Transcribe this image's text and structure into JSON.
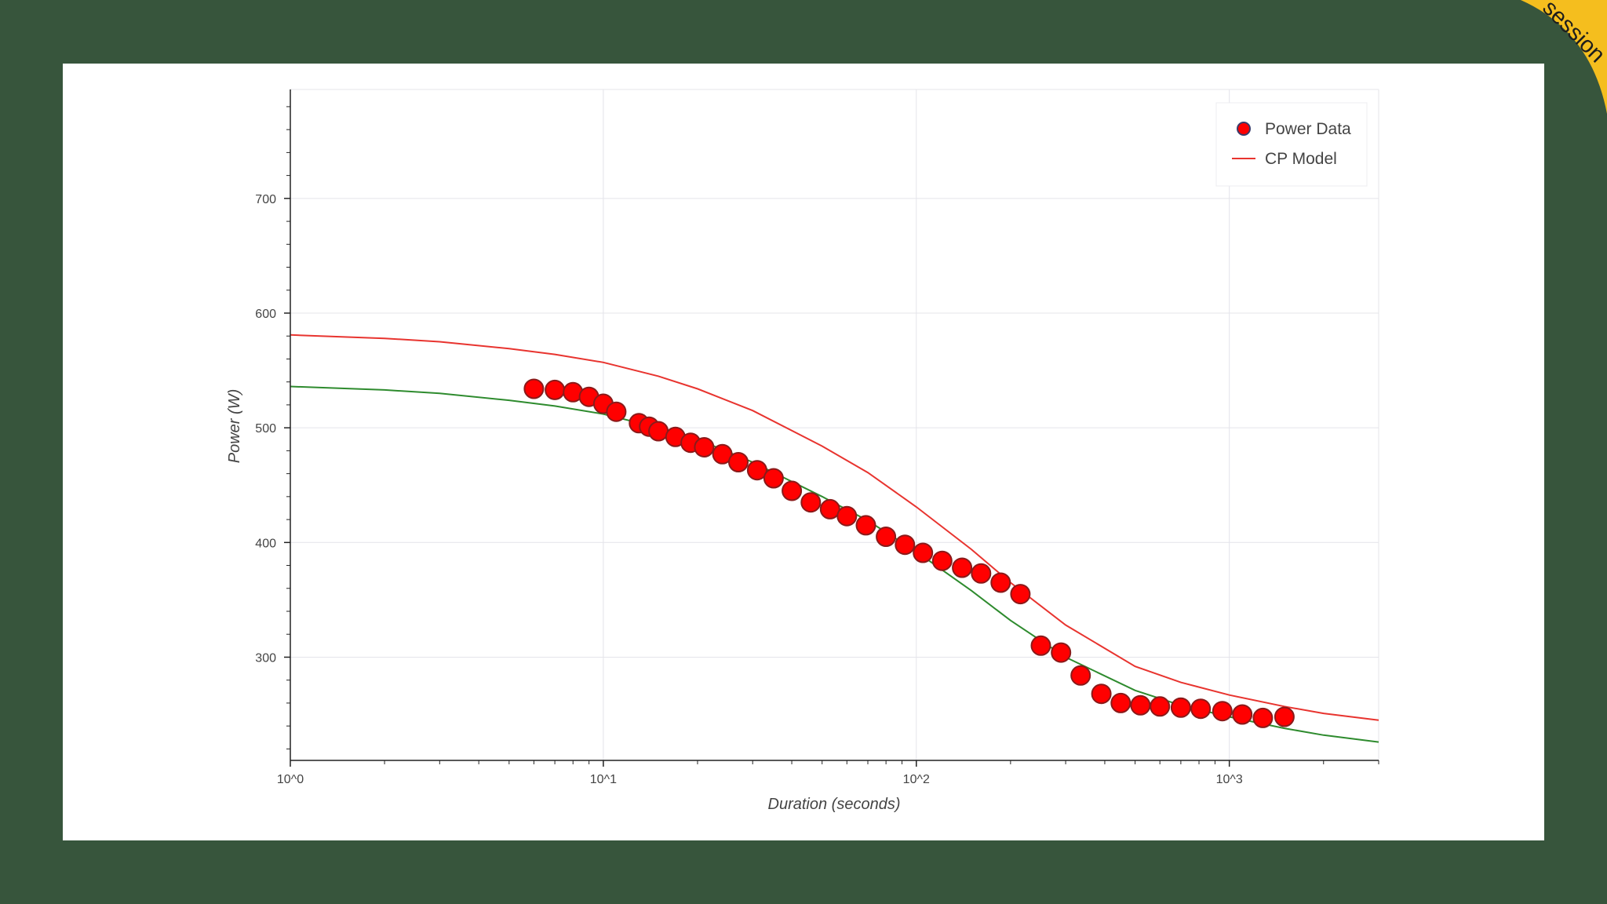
{
  "page": {
    "background_color": "#37553c",
    "card_color": "#ffffff",
    "badge_text": "session",
    "badge_color": "#f5be1e"
  },
  "chart_data": {
    "type": "scatter",
    "x_scale": "log",
    "xlim": [
      1,
      3000
    ],
    "ylim": [
      210,
      795
    ],
    "xlabel": "Duration (seconds)",
    "ylabel": "Power (W)",
    "x_ticks": [
      {
        "value": 1,
        "label": "10^0"
      },
      {
        "value": 10,
        "label": "10^1"
      },
      {
        "value": 100,
        "label": "10^2"
      },
      {
        "value": 1000,
        "label": "10^3"
      }
    ],
    "y_ticks": [
      300,
      400,
      500,
      600,
      700
    ],
    "grid": true,
    "legend": {
      "position": "top-right",
      "entries": [
        {
          "label": "Power Data",
          "kind": "marker",
          "color": "#ff0000"
        },
        {
          "label": "CP Model",
          "kind": "line",
          "color": "#e8342f"
        }
      ]
    },
    "series": [
      {
        "name": "Power Data",
        "kind": "scatter",
        "color": "#ff0000",
        "edge_color": "#8a1a1a",
        "x": [
          6,
          7,
          8,
          9,
          10,
          11,
          13,
          14,
          15,
          17,
          19,
          21,
          24,
          27,
          31,
          35,
          40,
          46,
          53,
          60,
          69,
          80,
          92,
          105,
          121,
          140,
          161,
          186,
          215,
          250,
          290,
          335,
          390,
          450,
          520,
          600,
          700,
          810,
          950,
          1100,
          1280,
          1500
        ],
        "y": [
          534,
          533,
          531,
          527,
          521,
          514,
          504,
          501,
          497,
          492,
          487,
          483,
          477,
          470,
          463,
          456,
          445,
          435,
          429,
          423,
          415,
          405,
          398,
          391,
          384,
          378,
          373,
          365,
          355,
          310,
          304,
          284,
          268,
          260,
          258,
          257,
          256,
          255,
          253,
          250,
          247,
          248
        ]
      },
      {
        "name": "CP Model",
        "kind": "line",
        "color": "#e8342f",
        "x": [
          1,
          2,
          3,
          5,
          7,
          10,
          15,
          20,
          30,
          50,
          70,
          100,
          150,
          200,
          300,
          500,
          700,
          1000,
          1500,
          2000,
          3000
        ],
        "y": [
          581,
          578,
          575,
          569,
          564,
          557,
          545,
          534,
          515,
          484,
          461,
          431,
          394,
          365,
          328,
          292,
          278,
          267,
          257,
          251,
          245
        ]
      },
      {
        "kind": "line",
        "color": "#2e8b2e",
        "x": [
          1,
          2,
          3,
          5,
          7,
          10,
          15,
          20,
          30,
          50,
          70,
          100,
          150,
          200,
          300,
          500,
          700,
          1000,
          1500,
          2000,
          3000
        ],
        "y": [
          536,
          533,
          530,
          524,
          519,
          512,
          500,
          490,
          470,
          440,
          419,
          392,
          358,
          332,
          300,
          271,
          258,
          248,
          238,
          232,
          226
        ]
      }
    ]
  }
}
